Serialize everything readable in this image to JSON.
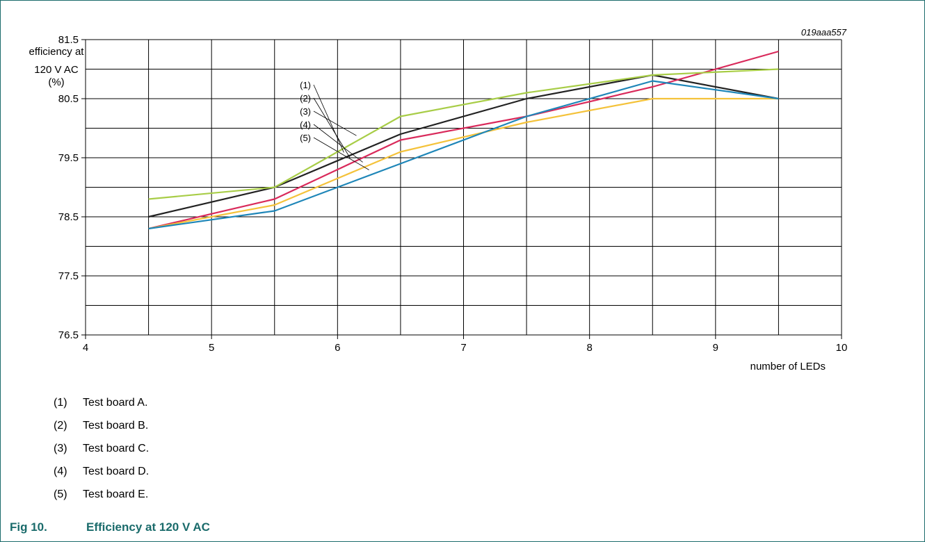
{
  "figure_id": "019aaa557",
  "caption": {
    "number": "Fig 10.",
    "title": "Efficiency at 120 V AC"
  },
  "notes": [
    {
      "marker": "(1)",
      "text": "Test board A."
    },
    {
      "marker": "(2)",
      "text": "Test board B."
    },
    {
      "marker": "(3)",
      "text": "Test board C."
    },
    {
      "marker": "(4)",
      "text": "Test board D."
    },
    {
      "marker": "(5)",
      "text": "Test board E."
    }
  ],
  "chart_data": {
    "type": "line",
    "title": "",
    "xlabel": "number of LEDs",
    "ylabel_lines": [
      "efficiency at",
      "120 V AC",
      "(%)"
    ],
    "xlim": [
      4,
      10
    ],
    "ylim": [
      76.5,
      81.5
    ],
    "xticks": [
      4,
      5,
      6,
      7,
      8,
      9,
      10
    ],
    "xtick_labels": [
      "4",
      "5",
      "6",
      "7",
      "8",
      "9",
      "10"
    ],
    "yticks": [
      76.5,
      77.5,
      78.5,
      79.5,
      80.5,
      81.5
    ],
    "ytick_labels": [
      "76.5",
      "77.5",
      "78.5",
      "79.5",
      "80.5",
      "81.5"
    ],
    "grid": true,
    "x": [
      4.5,
      5.5,
      6.5,
      7.5,
      8.5,
      9.5
    ],
    "series": [
      {
        "name": "(1)",
        "color": "#222222",
        "values": [
          78.5,
          79.0,
          79.9,
          80.5,
          80.9,
          80.5
        ]
      },
      {
        "name": "(2)",
        "color": "#d92a5b",
        "values": [
          78.3,
          78.8,
          79.8,
          80.2,
          80.7,
          81.3
        ]
      },
      {
        "name": "(3)",
        "color": "#a8cd47",
        "values": [
          78.8,
          79.0,
          80.2,
          80.6,
          80.9,
          81.0
        ]
      },
      {
        "name": "(4)",
        "color": "#f4c23a",
        "values": [
          78.3,
          78.7,
          79.6,
          80.1,
          80.5,
          80.5
        ]
      },
      {
        "name": "(5)",
        "color": "#1e86b8",
        "values": [
          78.3,
          78.6,
          79.4,
          80.2,
          80.8,
          80.5
        ]
      }
    ]
  }
}
